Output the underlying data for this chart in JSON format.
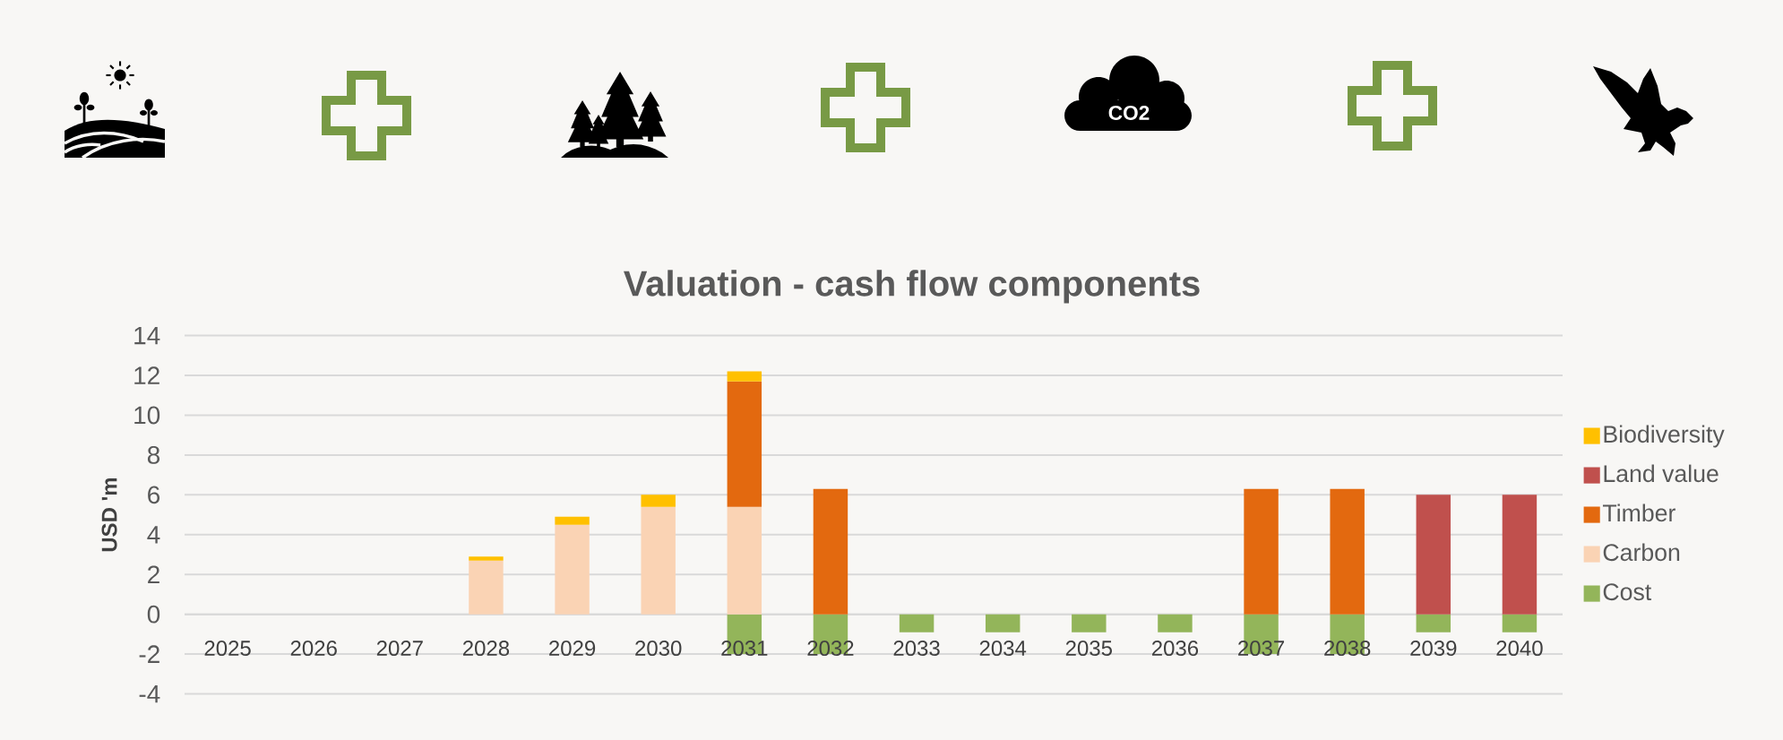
{
  "chart_data": {
    "type": "bar",
    "title": "Valuation - cash flow components",
    "ylabel": "USD 'm",
    "categories": [
      "2025",
      "2026",
      "2027",
      "2028",
      "2029",
      "2030",
      "2031",
      "2032",
      "2033",
      "2034",
      "2035",
      "2036",
      "2037",
      "2038",
      "2039",
      "2040"
    ],
    "stacked": true,
    "series": [
      {
        "name": "Cost",
        "color": "#93b55a",
        "values": [
          null,
          null,
          null,
          null,
          null,
          null,
          -2.0,
          -2.0,
          -0.9,
          -0.9,
          -0.9,
          -0.9,
          -2.0,
          -2.0,
          -0.9,
          -0.9
        ]
      },
      {
        "name": "Carbon",
        "color": "#fad3b4",
        "values": [
          null,
          null,
          null,
          2.7,
          4.5,
          5.4,
          5.4,
          null,
          null,
          null,
          null,
          null,
          null,
          null,
          null,
          null
        ]
      },
      {
        "name": "Timber",
        "color": "#e3690f",
        "values": [
          null,
          null,
          null,
          null,
          null,
          null,
          6.3,
          6.3,
          null,
          null,
          null,
          null,
          6.3,
          6.3,
          null,
          null
        ]
      },
      {
        "name": "Land value",
        "color": "#c0504d",
        "values": [
          null,
          null,
          null,
          null,
          null,
          null,
          null,
          null,
          null,
          null,
          null,
          null,
          null,
          null,
          6.0,
          6.0
        ]
      },
      {
        "name": "Biodiversity",
        "color": "#ffc000",
        "values": [
          null,
          null,
          null,
          0.2,
          0.4,
          0.6,
          0.5,
          null,
          null,
          null,
          null,
          null,
          null,
          null,
          null,
          null
        ]
      }
    ],
    "ylim": [
      -4,
      14
    ],
    "yticks": [
      -4,
      -2,
      0,
      2,
      4,
      6,
      8,
      10,
      12,
      14
    ],
    "grid": "y",
    "legend": "right",
    "annotations": [
      "CO2"
    ]
  }
}
